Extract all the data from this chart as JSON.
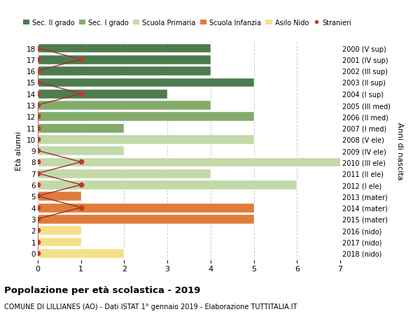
{
  "ages": [
    18,
    17,
    16,
    15,
    14,
    13,
    12,
    11,
    10,
    9,
    8,
    7,
    6,
    5,
    4,
    3,
    2,
    1,
    0
  ],
  "years": [
    "2000 (V sup)",
    "2001 (IV sup)",
    "2002 (III sup)",
    "2003 (II sup)",
    "2004 (I sup)",
    "2005 (III med)",
    "2006 (II med)",
    "2007 (I med)",
    "2008 (V ele)",
    "2009 (IV ele)",
    "2010 (III ele)",
    "2011 (II ele)",
    "2012 (I ele)",
    "2013 (mater)",
    "2014 (mater)",
    "2015 (mater)",
    "2016 (nido)",
    "2017 (nido)",
    "2018 (nido)"
  ],
  "bar_values": [
    4,
    4,
    4,
    5,
    3,
    4,
    5,
    2,
    5,
    2,
    7,
    4,
    6,
    1,
    5,
    5,
    1,
    1,
    2
  ],
  "bar_colors": [
    "#4d7c4f",
    "#4d7c4f",
    "#4d7c4f",
    "#4d7c4f",
    "#4d7c4f",
    "#82ab6a",
    "#82ab6a",
    "#82ab6a",
    "#c2d9a8",
    "#c2d9a8",
    "#c2d9a8",
    "#c2d9a8",
    "#c2d9a8",
    "#e07c3a",
    "#e07c3a",
    "#e07c3a",
    "#f5e08a",
    "#f5e08a",
    "#f5e08a"
  ],
  "stranieri_x": [
    0,
    1,
    0,
    0,
    1,
    0,
    0,
    0,
    0,
    0,
    1,
    0,
    1,
    0,
    1,
    0,
    0,
    0,
    0
  ],
  "legend_labels": [
    "Sec. II grado",
    "Sec. I grado",
    "Scuola Primaria",
    "Scuola Infanzia",
    "Asilo Nido",
    "Stranieri"
  ],
  "legend_colors": [
    "#4d7c4f",
    "#82ab6a",
    "#c2d9a8",
    "#e07c3a",
    "#f5e08a",
    "#c0392b"
  ],
  "ylabel": "Età alunni",
  "ylabel2": "Anni di nascita",
  "title_bold": "Popolazione per età scolastica - 2019",
  "subtitle": "COMUNE DI LILLIANES (AO) - Dati ISTAT 1° gennaio 2019 - Elaborazione TUTTITALIA.IT",
  "xlim": [
    0,
    7
  ],
  "background_color": "#ffffff",
  "grid_color": "#cccccc",
  "stranieri_color": "#c0392b",
  "line_color": "#9b3030"
}
